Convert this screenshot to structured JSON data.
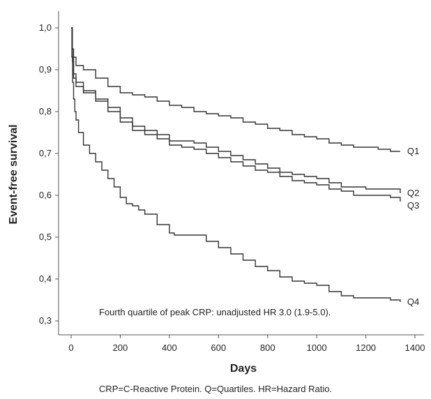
{
  "chart_data": {
    "type": "line",
    "title": "",
    "xlabel": "Days",
    "ylabel": "Event-free survival",
    "xlim": [
      0,
      1400
    ],
    "ylim": [
      0.3,
      1.0
    ],
    "x_ticks": [
      0,
      200,
      400,
      600,
      800,
      1000,
      1200,
      1400
    ],
    "y_ticks": [
      0.3,
      0.4,
      0.5,
      0.6,
      0.7,
      0.8,
      0.9,
      1.0
    ],
    "x_tick_labels": [
      "0",
      "200",
      "400",
      "600",
      "800",
      "1000",
      "1200",
      "1400"
    ],
    "y_tick_labels": [
      "0,3",
      "0,4",
      "0,5",
      "0,6",
      "0,7",
      "0,8",
      "0,9",
      "1,0"
    ],
    "grid": false,
    "line_color": "#333333",
    "annotation": "Fourth quartile of peak CRP: unadjusted HR 3.0 (1.9-5.0).",
    "series": [
      {
        "name": "Q1",
        "x": [
          0,
          5,
          10,
          20,
          50,
          100,
          150,
          200,
          250,
          300,
          350,
          400,
          450,
          500,
          550,
          600,
          650,
          700,
          750,
          800,
          850,
          900,
          950,
          1000,
          1050,
          1100,
          1150,
          1200,
          1250,
          1300,
          1340
        ],
        "y": [
          1.0,
          0.95,
          0.93,
          0.91,
          0.9,
          0.88,
          0.86,
          0.845,
          0.84,
          0.835,
          0.825,
          0.815,
          0.81,
          0.8,
          0.795,
          0.79,
          0.785,
          0.775,
          0.77,
          0.76,
          0.755,
          0.745,
          0.74,
          0.735,
          0.725,
          0.72,
          0.715,
          0.715,
          0.71,
          0.705,
          0.705
        ]
      },
      {
        "name": "Q2",
        "x": [
          0,
          5,
          10,
          20,
          50,
          100,
          150,
          200,
          250,
          300,
          350,
          400,
          450,
          500,
          550,
          600,
          650,
          700,
          750,
          800,
          850,
          900,
          950,
          1000,
          1050,
          1100,
          1150,
          1200,
          1250,
          1300,
          1340
        ],
        "y": [
          1.0,
          0.93,
          0.89,
          0.87,
          0.85,
          0.83,
          0.81,
          0.785,
          0.765,
          0.755,
          0.745,
          0.73,
          0.73,
          0.725,
          0.715,
          0.705,
          0.695,
          0.685,
          0.675,
          0.665,
          0.655,
          0.65,
          0.645,
          0.64,
          0.63,
          0.62,
          0.62,
          0.615,
          0.615,
          0.615,
          0.605
        ]
      },
      {
        "name": "Q3",
        "x": [
          0,
          5,
          10,
          20,
          50,
          100,
          150,
          200,
          250,
          300,
          350,
          400,
          450,
          500,
          550,
          600,
          650,
          700,
          750,
          800,
          850,
          900,
          950,
          1000,
          1050,
          1100,
          1150,
          1200,
          1250,
          1300,
          1340
        ],
        "y": [
          1.0,
          0.92,
          0.88,
          0.86,
          0.845,
          0.825,
          0.8,
          0.775,
          0.755,
          0.745,
          0.735,
          0.72,
          0.715,
          0.71,
          0.7,
          0.69,
          0.68,
          0.67,
          0.66,
          0.655,
          0.645,
          0.635,
          0.63,
          0.625,
          0.615,
          0.61,
          0.6,
          0.6,
          0.6,
          0.595,
          0.585
        ]
      },
      {
        "name": "Q4",
        "x": [
          0,
          3,
          6,
          10,
          15,
          20,
          30,
          50,
          75,
          100,
          125,
          150,
          175,
          200,
          225,
          250,
          275,
          300,
          350,
          400,
          420,
          450,
          500,
          550,
          600,
          650,
          700,
          750,
          800,
          850,
          900,
          950,
          1000,
          1050,
          1100,
          1150,
          1200,
          1250,
          1300,
          1340
        ],
        "y": [
          1.0,
          0.93,
          0.87,
          0.83,
          0.8,
          0.78,
          0.75,
          0.72,
          0.7,
          0.68,
          0.66,
          0.64,
          0.62,
          0.595,
          0.58,
          0.575,
          0.565,
          0.555,
          0.53,
          0.51,
          0.505,
          0.505,
          0.505,
          0.49,
          0.475,
          0.46,
          0.445,
          0.43,
          0.42,
          0.405,
          0.395,
          0.39,
          0.385,
          0.37,
          0.36,
          0.355,
          0.355,
          0.355,
          0.35,
          0.345
        ]
      }
    ]
  },
  "caption": "CRP=C-Reactive Protein. Q=Quartiles. HR=Hazard Ratio."
}
